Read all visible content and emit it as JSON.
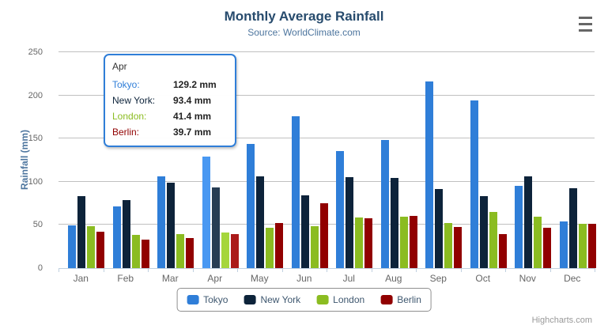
{
  "chart": {
    "title": "Monthly Average Rainfall",
    "subtitle": "Source: WorldClimate.com",
    "credits": "Highcharts.com"
  },
  "chart_data": {
    "type": "bar",
    "title": "Monthly Average Rainfall",
    "subtitle": "Source: WorldClimate.com",
    "xlabel": "",
    "ylabel": "Rainfall (mm)",
    "ylim": [
      0,
      250
    ],
    "yticks": [
      0,
      50,
      100,
      150,
      200,
      250
    ],
    "grid": true,
    "legend_position": "bottom",
    "categories": [
      "Jan",
      "Feb",
      "Mar",
      "Apr",
      "May",
      "Jun",
      "Jul",
      "Aug",
      "Sep",
      "Oct",
      "Nov",
      "Dec"
    ],
    "series": [
      {
        "name": "Tokyo",
        "color": "#2f7ed8",
        "hover_color": "#4998f2",
        "values": [
          49.9,
          71.5,
          106.4,
          129.2,
          144.0,
          176.0,
          135.6,
          148.5,
          216.4,
          194.1,
          95.6,
          54.4
        ]
      },
      {
        "name": "New York",
        "color": "#0d233a",
        "hover_color": "#273d54",
        "values": [
          83.6,
          78.8,
          98.5,
          93.4,
          106.0,
          84.5,
          105.0,
          104.3,
          91.2,
          83.5,
          106.6,
          92.3
        ]
      },
      {
        "name": "London",
        "color": "#8bbc21",
        "hover_color": "#a5d63b",
        "values": [
          48.9,
          38.8,
          39.3,
          41.4,
          47.0,
          48.3,
          59.0,
          59.6,
          52.4,
          65.2,
          59.3,
          51.2
        ]
      },
      {
        "name": "Berlin",
        "color": "#910000",
        "hover_color": "#ab1a1a",
        "values": [
          42.4,
          33.2,
          34.5,
          39.7,
          52.6,
          75.5,
          57.4,
          60.4,
          47.6,
          39.1,
          46.8,
          51.1
        ]
      }
    ],
    "hover_category": "Apr",
    "hover_category_index": 3
  },
  "tooltip": {
    "header": "Apr",
    "rows": [
      {
        "label": "Tokyo:",
        "value": "129.2 mm",
        "color": "#2f7ed8"
      },
      {
        "label": "New York:",
        "value": "93.4 mm",
        "color": "#0d233a"
      },
      {
        "label": "London:",
        "value": "41.4 mm",
        "color": "#8bbc21"
      },
      {
        "label": "Berlin:",
        "value": "39.7 mm",
        "color": "#910000"
      }
    ]
  },
  "legend": {
    "items": [
      {
        "label": "Tokyo",
        "color": "#2f7ed8"
      },
      {
        "label": "New York",
        "color": "#0d233a"
      },
      {
        "label": "London",
        "color": "#8bbc21"
      },
      {
        "label": "Berlin",
        "color": "#910000"
      }
    ]
  },
  "colors": {
    "title": "#274b6d",
    "subtitle": "#4d759e",
    "axis_title": "#4d759e",
    "axis_labels": "#666666",
    "gridline": "#C0C0C0",
    "axis_line": "#C0D0E0",
    "legend_border": "#909090",
    "legend_text": "#3E576F",
    "tooltip_border": "#2f7ed8",
    "credits": "#999999",
    "menu_icon": "#666666"
  }
}
